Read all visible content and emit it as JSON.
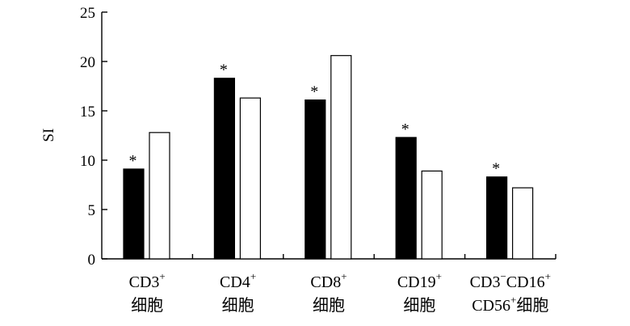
{
  "chart_data": {
    "type": "bar",
    "ylabel": "SI",
    "ylim": [
      0,
      25
    ],
    "yticks": [
      0,
      5,
      10,
      15,
      20,
      25
    ],
    "categories": [
      {
        "line1": "CD3",
        "line1_sup": "+",
        "line2": "细胞"
      },
      {
        "line1": "CD4",
        "line1_sup": "+",
        "line2": "细胞"
      },
      {
        "line1": "CD8",
        "line1_sup": "+",
        "line2": "细胞"
      },
      {
        "line1": "CD19",
        "line1_sup": "+",
        "line2": "细胞"
      },
      {
        "line1": "CD3",
        "line1_sup": "−",
        "line1b": "CD16",
        "line1b_sup": "+",
        "line2": "CD56",
        "line2_sup": "+",
        "line2b": "细胞"
      }
    ],
    "series": [
      {
        "fill": "#000000",
        "values": [
          9.1,
          18.3,
          16.1,
          12.3,
          8.3
        ]
      },
      {
        "fill": "#ffffff",
        "values": [
          12.8,
          16.3,
          20.6,
          8.9,
          7.2
        ]
      }
    ],
    "significance_marker": "*",
    "significant": [
      true,
      true,
      true,
      true,
      true
    ]
  }
}
